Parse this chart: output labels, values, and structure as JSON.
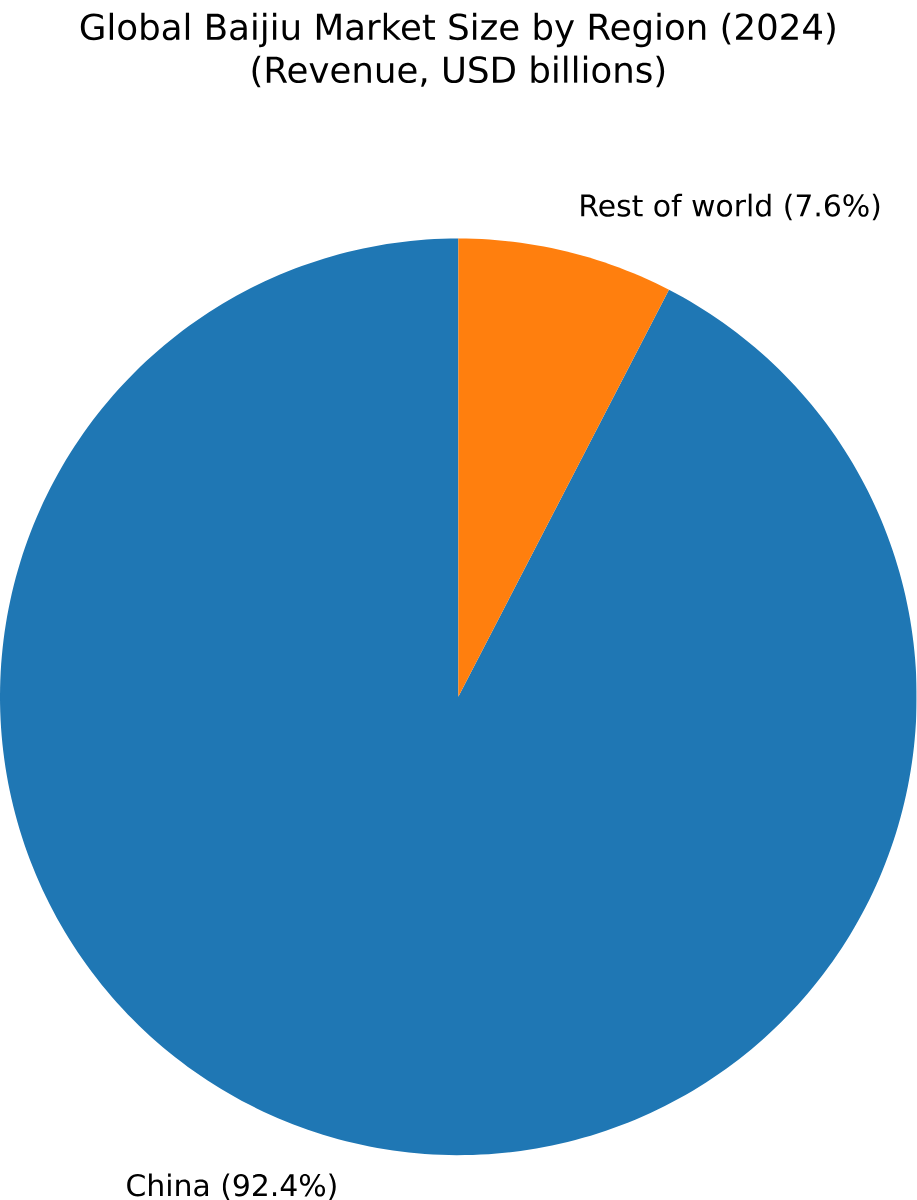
{
  "chart_data": {
    "type": "pie",
    "title": "Global Baijiu Market Size by Region (2024)\n(Revenue, USD billions)",
    "categories": [
      "China (92.4%)",
      "Rest of world (7.6%)"
    ],
    "values": [
      92.4,
      7.6
    ],
    "colors": [
      "#1f77b4",
      "#ff7f0e"
    ]
  }
}
